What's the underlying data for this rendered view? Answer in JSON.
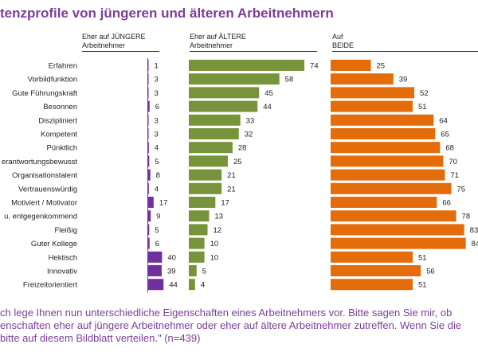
{
  "title": "tenzprofile von jüngeren und älteren Arbeitnehmern",
  "columns": [
    {
      "line1": "Eher auf JÜNGERE",
      "line2": "Arbeitnehmer"
    },
    {
      "line1": "Eher auf ÄLTERE",
      "line2": "Arbeitnehmer"
    },
    {
      "line1": "Auf",
      "line2": "BEIDE"
    }
  ],
  "colors": {
    "younger": "#7030a0",
    "older": "#77933c",
    "both": "#e46c0a",
    "title": "#7b3f98"
  },
  "chart_data": {
    "type": "bar",
    "orientation": "horizontal",
    "categories": [
      "Erfahren",
      "Vorbildfunktion",
      "Gute Führungskraft",
      "Besonnen",
      "Diszipliniert",
      "Kompetent",
      "Pünktlich",
      "erantwortungsbewusst",
      "Organisationstalent",
      "Vertrauenswürdig",
      "Motiviert / Motivator",
      "u. entgegenkommend",
      "Fleißig",
      "Guter Kollege",
      "Hektisch",
      "Innovativ",
      "Freizeitorientiert"
    ],
    "series": [
      {
        "name": "Eher auf JÜNGERE Arbeitnehmer",
        "values": [
          1,
          3,
          3,
          6,
          3,
          3,
          4,
          5,
          8,
          4,
          17,
          9,
          5,
          6,
          40,
          39,
          44
        ]
      },
      {
        "name": "Eher auf ÄLTERE Arbeitnehmer",
        "values": [
          74,
          58,
          45,
          44,
          33,
          32,
          28,
          25,
          21,
          21,
          17,
          13,
          12,
          10,
          10,
          5,
          4
        ]
      },
      {
        "name": "Auf BEIDE",
        "values": [
          25,
          39,
          52,
          51,
          64,
          65,
          68,
          70,
          71,
          75,
          66,
          78,
          83,
          84,
          51,
          56,
          51
        ]
      }
    ]
  },
  "note": [
    "ch lege Ihnen nun unterschiedliche Eigenschaften eines Arbeitnehmers vor. Bitte sagen Sie mir, ob",
    "enschaften eher auf jüngere Arbeitnehmer oder eher auf ältere Arbeitnehmer zutreffen. Wenn Sie die",
    "bitte auf diesem Bildblatt verteilen.\" (n=439)"
  ]
}
